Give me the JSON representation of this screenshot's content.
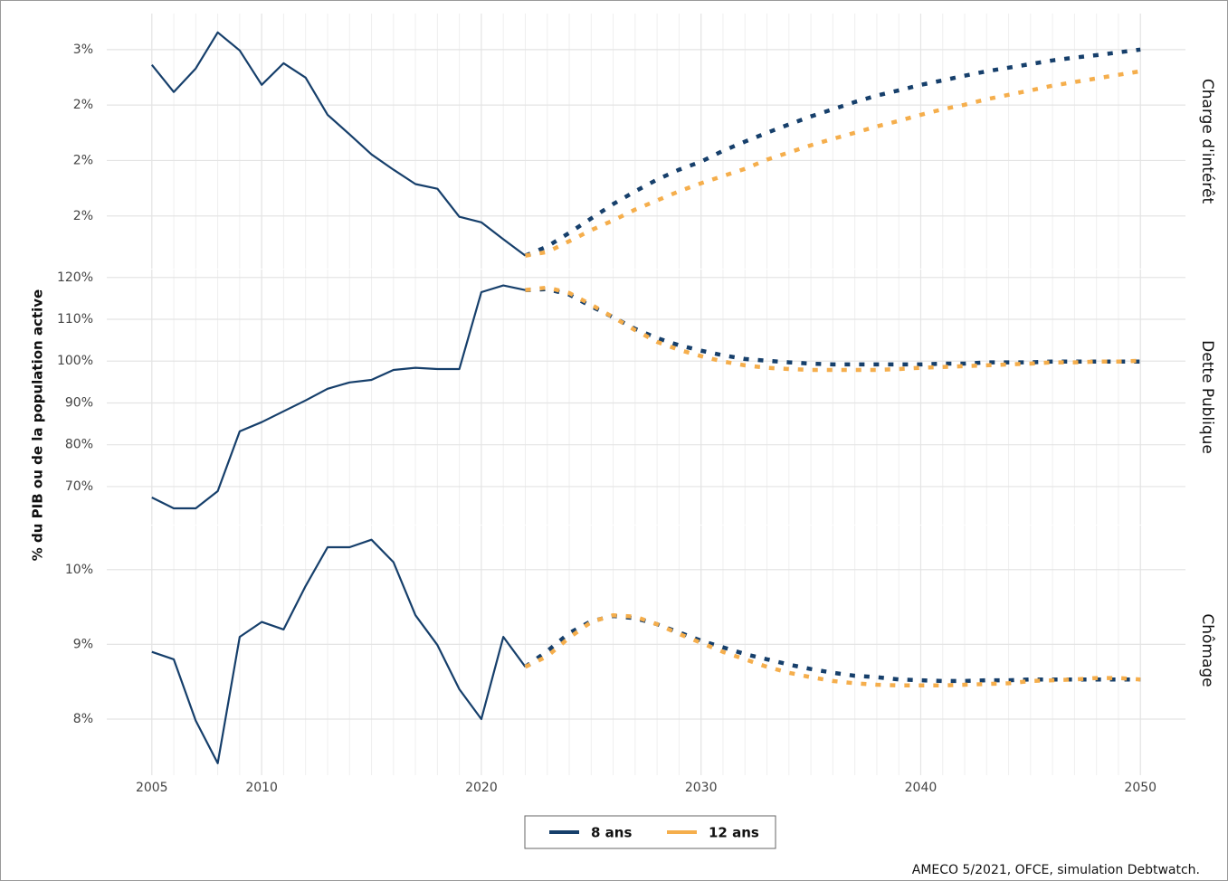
{
  "chart_data": {
    "type": "line",
    "ylabel": "% du PIB ou de la population active",
    "source": "AMECO 5/2021, OFCE, simulation Debtwatch.",
    "legend": "bottom",
    "grid": true,
    "xlim": [
      2002.95,
      2052.05
    ],
    "xticks": [
      2005,
      2010,
      2020,
      2030,
      2040,
      2050
    ],
    "x": [
      2005,
      2006,
      2007,
      2008,
      2009,
      2010,
      2011,
      2012,
      2013,
      2014,
      2015,
      2016,
      2017,
      2018,
      2019,
      2020,
      2021,
      2022,
      2023,
      2024,
      2025,
      2026,
      2027,
      2028,
      2029,
      2030,
      2031,
      2032,
      2033,
      2034,
      2035,
      2036,
      2037,
      2038,
      2039,
      2040,
      2041,
      2042,
      2043,
      2044,
      2045,
      2046,
      2047,
      2048,
      2049,
      2050
    ],
    "facets": [
      {
        "title": "Charge d'intérêt",
        "ylim": [
          1.81,
          2.73
        ],
        "yticks": [
          {
            "value": 2.6,
            "label": "3%"
          },
          {
            "value": 2.4,
            "label": "2%"
          },
          {
            "value": 2.2,
            "label": "2%"
          },
          {
            "value": 2.0,
            "label": "2%"
          }
        ],
        "series": [
          {
            "name": "8 ans",
            "color": "#163f6b",
            "values": [
              2.545,
              2.447,
              2.532,
              2.662,
              2.597,
              2.473,
              2.551,
              2.499,
              2.365,
              2.294,
              2.222,
              2.167,
              2.115,
              2.098,
              1.997,
              1.977,
              1.916,
              1.857,
              1.89,
              1.939,
              1.991,
              2.043,
              2.089,
              2.131,
              2.167,
              2.196,
              2.235,
              2.268,
              2.3,
              2.33,
              2.359,
              2.385,
              2.411,
              2.434,
              2.453,
              2.473,
              2.489,
              2.506,
              2.522,
              2.535,
              2.548,
              2.561,
              2.571,
              2.58,
              2.59,
              2.6
            ]
          },
          {
            "name": "12 ans",
            "color": "#f5ae4c",
            "values": [
              null,
              null,
              null,
              null,
              null,
              null,
              null,
              null,
              null,
              null,
              null,
              null,
              null,
              null,
              null,
              null,
              null,
              1.857,
              1.87,
              1.909,
              1.949,
              1.984,
              2.023,
              2.056,
              2.089,
              2.118,
              2.144,
              2.17,
              2.203,
              2.229,
              2.255,
              2.278,
              2.3,
              2.323,
              2.343,
              2.365,
              2.385,
              2.401,
              2.421,
              2.437,
              2.453,
              2.47,
              2.483,
              2.496,
              2.509,
              2.522
            ]
          }
        ]
      },
      {
        "title": "Dette Publique",
        "ylim": [
          60.9,
          121.9
        ],
        "yticks": [
          {
            "value": 120,
            "label": "120%"
          },
          {
            "value": 110,
            "label": "110%"
          },
          {
            "value": 100,
            "label": "100%"
          },
          {
            "value": 90,
            "label": "90%"
          },
          {
            "value": 80,
            "label": "80%"
          },
          {
            "value": 70,
            "label": "70%"
          }
        ],
        "series": [
          {
            "name": "8 ans",
            "color": "#163f6b",
            "values": [
              67.4,
              64.8,
              64.8,
              68.9,
              83.2,
              85.4,
              88.0,
              90.6,
              93.4,
              94.9,
              95.5,
              97.9,
              98.4,
              98.1,
              98.1,
              116.5,
              118.1,
              117.0,
              117.2,
              115.9,
              113.1,
              110.5,
              107.7,
              105.5,
              103.8,
              102.5,
              101.4,
              100.5,
              100.1,
              99.7,
              99.4,
              99.2,
              99.2,
              99.2,
              99.2,
              99.2,
              99.4,
              99.4,
              99.7,
              99.7,
              99.7,
              99.9,
              99.9,
              99.9,
              99.9,
              99.9
            ]
          },
          {
            "name": "12 ans",
            "color": "#f5ae4c",
            "values": [
              null,
              null,
              null,
              null,
              null,
              null,
              null,
              null,
              null,
              null,
              null,
              null,
              null,
              null,
              null,
              null,
              null,
              117.0,
              117.6,
              116.3,
              113.5,
              110.5,
              107.4,
              104.6,
              102.7,
              101.2,
              99.9,
              99.0,
              98.4,
              98.1,
              97.9,
              97.9,
              97.9,
              97.9,
              98.1,
              98.4,
              98.6,
              98.8,
              99.0,
              99.2,
              99.4,
              99.7,
              99.7,
              99.9,
              99.9,
              100.1
            ]
          }
        ]
      },
      {
        "title": "Chômage",
        "ylim": [
          7.25,
          10.59
        ],
        "yticks": [
          {
            "value": 10,
            "label": "10%"
          },
          {
            "value": 9,
            "label": "9%"
          },
          {
            "value": 8,
            "label": "8%"
          }
        ],
        "series": [
          {
            "name": "8 ans",
            "color": "#163f6b",
            "values": [
              8.9,
              8.8,
              7.98,
              7.41,
              9.1,
              9.3,
              9.2,
              9.78,
              10.3,
              10.3,
              10.4,
              10.1,
              9.39,
              8.99,
              8.4,
              8.0,
              9.1,
              8.7,
              8.91,
              9.15,
              9.31,
              9.38,
              9.35,
              9.27,
              9.16,
              9.05,
              8.96,
              8.87,
              8.8,
              8.73,
              8.67,
              8.62,
              8.58,
              8.56,
              8.53,
              8.52,
              8.51,
              8.51,
              8.52,
              8.52,
              8.53,
              8.53,
              8.53,
              8.53,
              8.53,
              8.53
            ]
          },
          {
            "name": "12 ans",
            "color": "#f5ae4c",
            "values": [
              null,
              null,
              null,
              null,
              null,
              null,
              null,
              null,
              null,
              null,
              null,
              null,
              null,
              null,
              null,
              null,
              null,
              8.7,
              8.84,
              9.09,
              9.3,
              9.39,
              9.37,
              9.27,
              9.14,
              9.02,
              8.9,
              8.8,
              8.7,
              8.62,
              8.56,
              8.51,
              8.48,
              8.46,
              8.45,
              8.45,
              8.45,
              8.46,
              8.47,
              8.48,
              8.51,
              8.52,
              8.53,
              8.55,
              8.55,
              8.53
            ]
          }
        ]
      }
    ]
  }
}
